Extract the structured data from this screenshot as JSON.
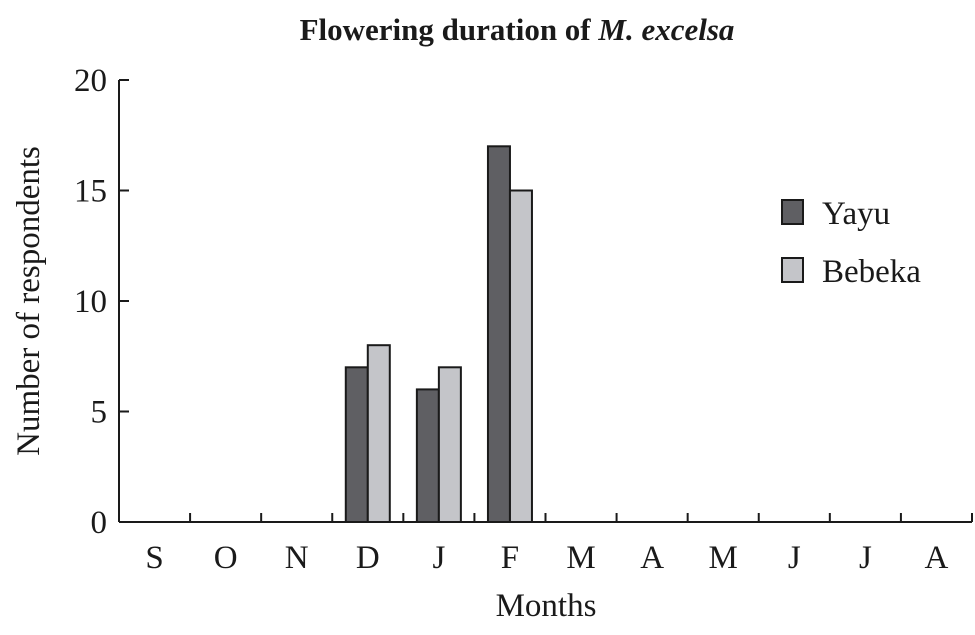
{
  "chart_data": {
    "type": "bar",
    "title": "Flowering duration of",
    "title_italic": "M. excelsa",
    "xlabel": "Months",
    "ylabel": "Number of respondents",
    "ylim": [
      0,
      20
    ],
    "yticks": [
      "0",
      "5",
      "10",
      "15",
      "20"
    ],
    "categories": [
      "S",
      "O",
      "N",
      "D",
      "J",
      "F",
      "M",
      "A",
      "M",
      "J",
      "J",
      "A"
    ],
    "series": [
      {
        "name": "Yayu",
        "color": "#5f5f63",
        "values": [
          0,
          0,
          0,
          7,
          6,
          17,
          0,
          0,
          0,
          0,
          0,
          0
        ]
      },
      {
        "name": "Bebeka",
        "color": "#c4c5c9",
        "values": [
          0,
          0,
          0,
          8,
          7,
          15,
          0,
          0,
          0,
          0,
          0,
          0
        ]
      }
    ],
    "legend": "top-right",
    "grid": false
  }
}
